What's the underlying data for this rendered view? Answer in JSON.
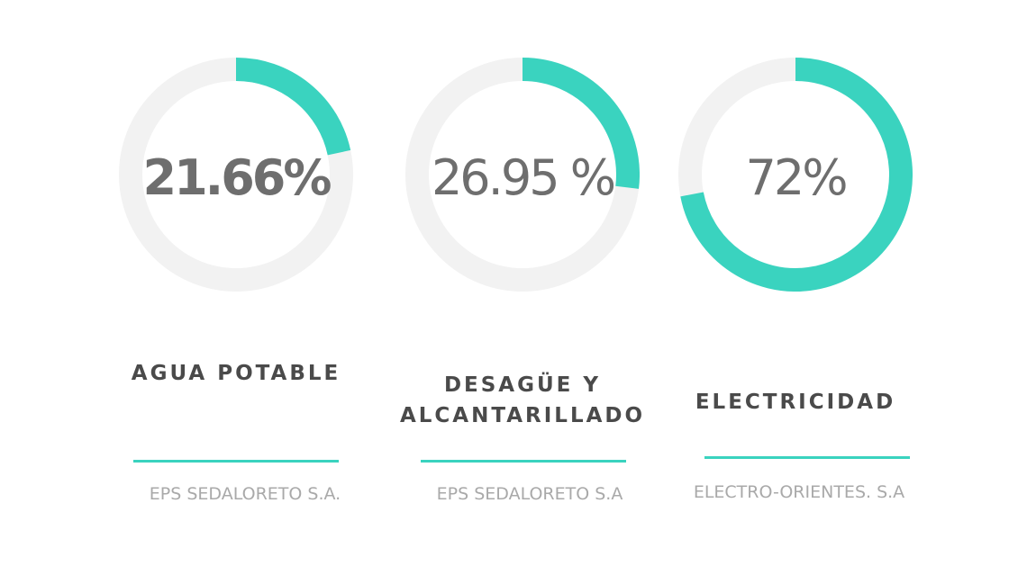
{
  "colors": {
    "accent": "#3ad3bf",
    "track": "#f2f2f2",
    "value_text": "#6e6e6e",
    "title_text": "#4a4a4a",
    "company_text": "#a9a9a9"
  },
  "chart_data": [
    {
      "type": "pie",
      "value": 21.66,
      "max": 100,
      "value_label": "21.66%",
      "title": "AGUA POTABLE",
      "subtitle": "EPS SEDALORETO S.A."
    },
    {
      "type": "pie",
      "value": 26.95,
      "max": 100,
      "value_label": "26.95 %",
      "title": "DESAGÜE Y ALCANTARILLADO",
      "subtitle": "EPS SEDALORETO S.A"
    },
    {
      "type": "pie",
      "value": 72,
      "max": 100,
      "value_label": "72%",
      "title": "ELECTRICIDAD",
      "subtitle": "ELECTRO-ORIENTES. S.A"
    }
  ]
}
